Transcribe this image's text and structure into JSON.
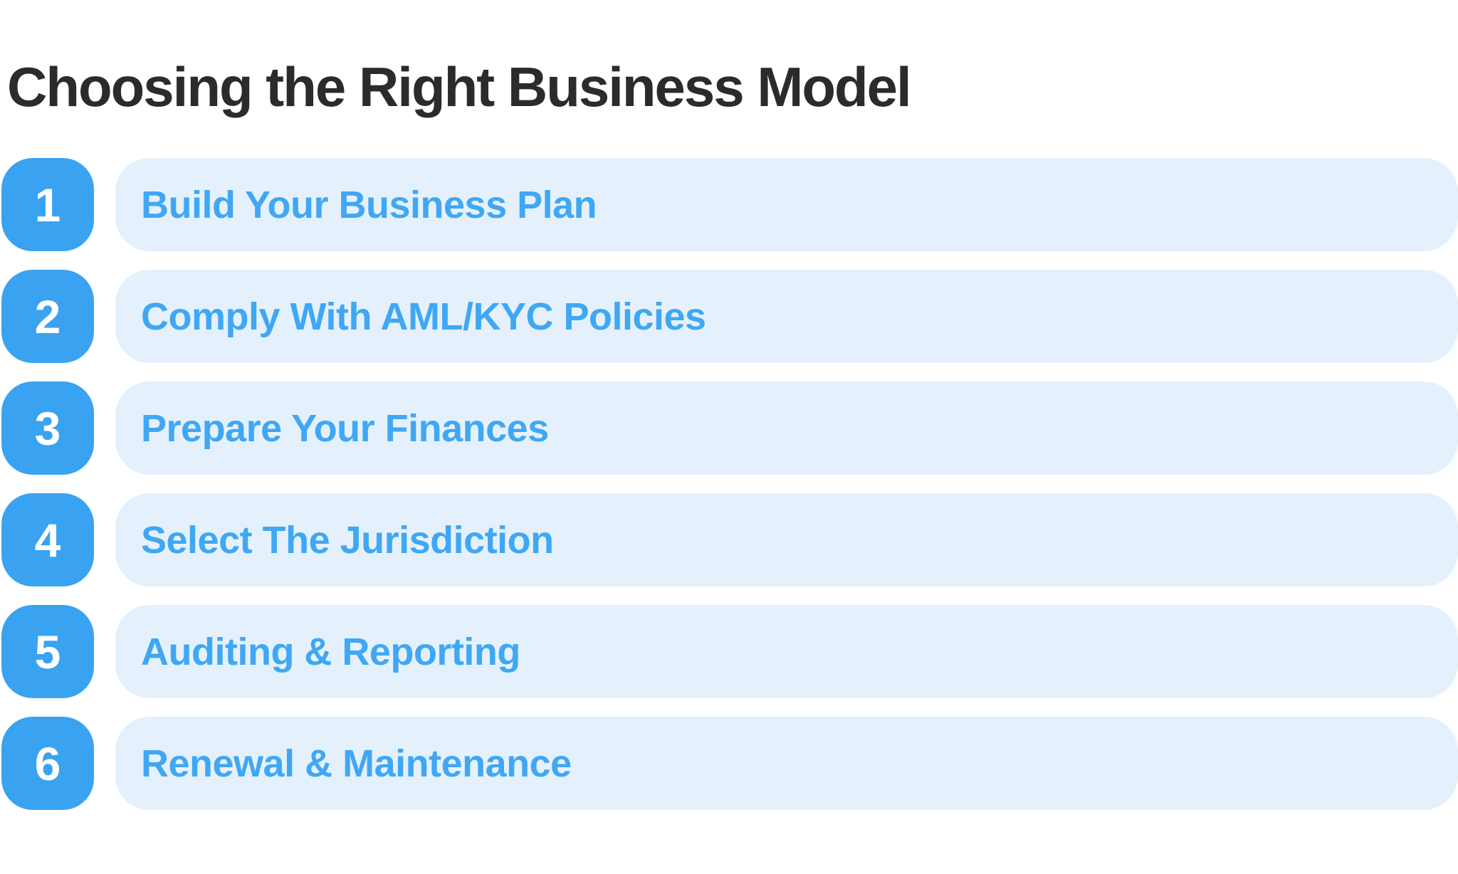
{
  "title": "Choosing the Right Business Model",
  "colors": {
    "badge_blue": "#39a3f2",
    "item_text_blue": "#40a7f4",
    "item_bg": "#e4f1fc",
    "title_color": "#2b2b2b",
    "number_color": "#ffffff",
    "page_bg": "#ffffff"
  },
  "steps": [
    {
      "number": "1",
      "label": "Build Your Business Plan"
    },
    {
      "number": "2",
      "label": "Comply With AML/KYC Policies"
    },
    {
      "number": "3",
      "label": "Prepare Your Finances"
    },
    {
      "number": "4",
      "label": "Select The Jurisdiction"
    },
    {
      "number": "5",
      "label": "Auditing & Reporting"
    },
    {
      "number": "6",
      "label": "Renewal & Maintenance"
    }
  ]
}
